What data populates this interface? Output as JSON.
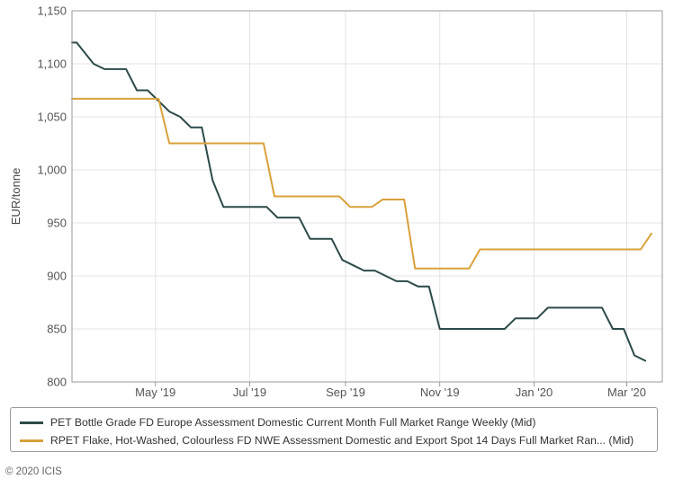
{
  "chart_data": {
    "type": "line",
    "ylabel": "EUR/tonne",
    "ylim": [
      800,
      1150
    ],
    "yticks": [
      "1,150",
      "1,100",
      "1,050",
      "1,000",
      "950",
      "900",
      "850",
      "800"
    ],
    "ytick_values": [
      1150,
      1100,
      1050,
      1000,
      950,
      900,
      850,
      800
    ],
    "xlim": [
      "2019-03-08",
      "2020-03-24"
    ],
    "xticks": [
      {
        "label": "May '19",
        "date": "2019-05-01"
      },
      {
        "label": "Jul '19",
        "date": "2019-07-01"
      },
      {
        "label": "Sep '19",
        "date": "2019-09-01"
      },
      {
        "label": "Nov '19",
        "date": "2019-11-01"
      },
      {
        "label": "Jan '20",
        "date": "2020-01-01"
      },
      {
        "label": "Mar '20",
        "date": "2020-03-01"
      }
    ],
    "grid": true,
    "legend_position": "bottom",
    "series": [
      {
        "name": "PET Bottle Grade FD Europe Assessment Domestic Current Month Full Market Range Weekly (Mid)",
        "color": "#2d4a4a",
        "points": [
          [
            "2019-03-08",
            1120
          ],
          [
            "2019-03-11",
            1120
          ],
          [
            "2019-03-22",
            1100
          ],
          [
            "2019-03-29",
            1095
          ],
          [
            "2019-04-12",
            1095
          ],
          [
            "2019-04-19",
            1075
          ],
          [
            "2019-04-26",
            1075
          ],
          [
            "2019-05-10",
            1055
          ],
          [
            "2019-05-17",
            1050
          ],
          [
            "2019-05-24",
            1040
          ],
          [
            "2019-05-31",
            1040
          ],
          [
            "2019-06-07",
            990
          ],
          [
            "2019-06-14",
            965
          ],
          [
            "2019-07-12",
            965
          ],
          [
            "2019-07-19",
            955
          ],
          [
            "2019-08-02",
            955
          ],
          [
            "2019-08-09",
            935
          ],
          [
            "2019-08-23",
            935
          ],
          [
            "2019-08-30",
            915
          ],
          [
            "2019-09-06",
            910
          ],
          [
            "2019-09-13",
            905
          ],
          [
            "2019-09-20",
            905
          ],
          [
            "2019-10-04",
            895
          ],
          [
            "2019-10-11",
            895
          ],
          [
            "2019-10-18",
            890
          ],
          [
            "2019-10-25",
            890
          ],
          [
            "2019-11-01",
            850
          ],
          [
            "2019-12-13",
            850
          ],
          [
            "2019-12-20",
            860
          ],
          [
            "2020-01-03",
            860
          ],
          [
            "2020-01-10",
            870
          ],
          [
            "2020-02-14",
            870
          ],
          [
            "2020-02-21",
            850
          ],
          [
            "2020-02-28",
            850
          ],
          [
            "2020-03-06",
            825
          ],
          [
            "2020-03-13",
            820
          ]
        ]
      },
      {
        "name": "RPET Flake, Hot-Washed, Colourless FD NWE Assessment Domestic and Export Spot 14 Days Full Market Ran... (Mid)",
        "color": "#d9a13b",
        "points": [
          [
            "2019-03-08",
            1067
          ],
          [
            "2019-05-03",
            1067
          ],
          [
            "2019-05-10",
            1025
          ],
          [
            "2019-07-10",
            1025
          ],
          [
            "2019-07-17",
            975
          ],
          [
            "2019-08-28",
            975
          ],
          [
            "2019-09-04",
            965
          ],
          [
            "2019-09-18",
            965
          ],
          [
            "2019-09-25",
            972
          ],
          [
            "2019-10-09",
            972
          ],
          [
            "2019-10-16",
            907
          ],
          [
            "2019-11-20",
            907
          ],
          [
            "2019-11-27",
            925
          ],
          [
            "2020-03-10",
            925
          ],
          [
            "2020-03-17",
            940
          ]
        ]
      }
    ]
  },
  "footer": "© 2020 ICIS"
}
